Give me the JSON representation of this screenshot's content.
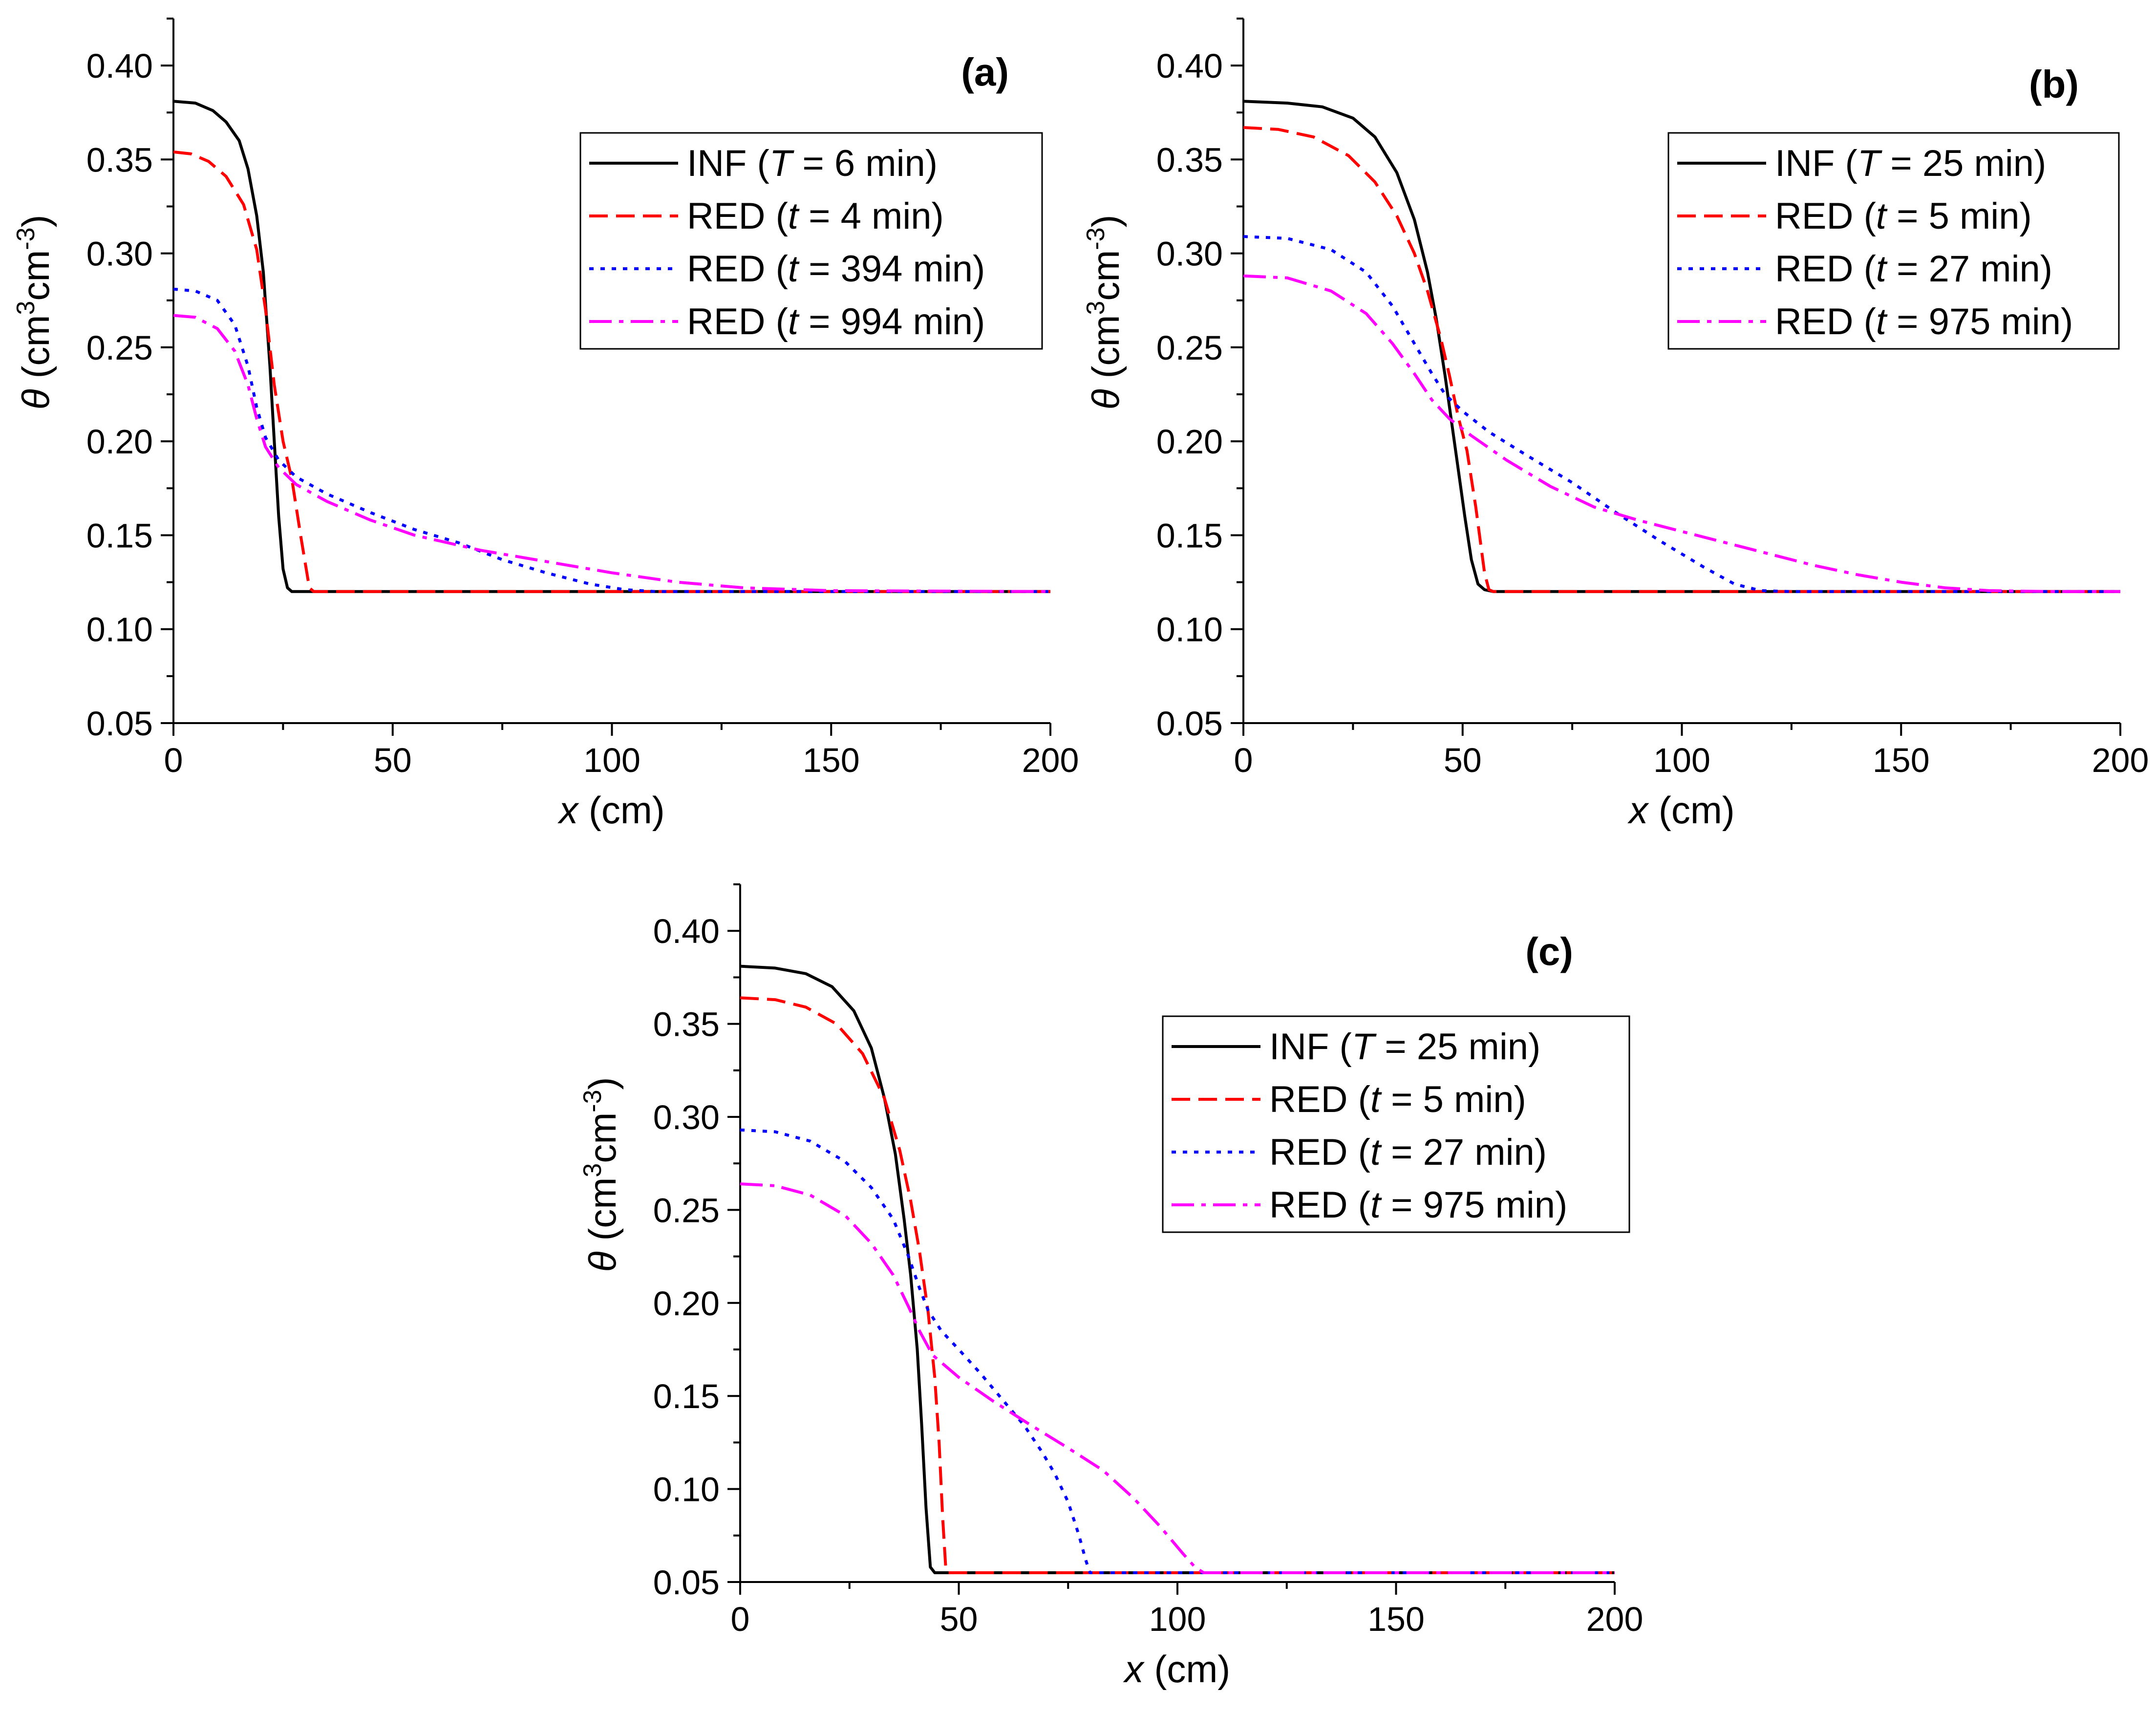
{
  "chart_data": [
    {
      "type": "line",
      "panel_label": "(a)",
      "xlabel_var": "x",
      "xlabel_unit": "(cm)",
      "ylabel_var": "θ",
      "ylabel_unit_parts": [
        " (cm",
        "3",
        "cm",
        "-3",
        ")"
      ],
      "xlim": [
        0,
        200
      ],
      "ylim": [
        0.05,
        0.425
      ],
      "xticks": [
        0,
        50,
        100,
        150,
        200
      ],
      "xtick_labels": [
        "0",
        "50",
        "100",
        "150",
        "200"
      ],
      "yticks": [
        0.05,
        0.1,
        0.15,
        0.2,
        0.25,
        0.3,
        0.35,
        0.4
      ],
      "ytick_labels": [
        "0.05",
        "0.10",
        "0.15",
        "0.20",
        "0.25",
        "0.30",
        "0.35",
        "0.40"
      ],
      "series": [
        {
          "pre": "INF (",
          "var": "T",
          "post": " = 6 min)",
          "color": "#000000",
          "dash": "solid",
          "points": [
            [
              0,
              0.381
            ],
            [
              5,
              0.38
            ],
            [
              9,
              0.376
            ],
            [
              12,
              0.37
            ],
            [
              15,
              0.36
            ],
            [
              17,
              0.345
            ],
            [
              19,
              0.32
            ],
            [
              20.5,
              0.29
            ],
            [
              22,
              0.24
            ],
            [
              23,
              0.2
            ],
            [
              24,
              0.16
            ],
            [
              25,
              0.132
            ],
            [
              26,
              0.122
            ],
            [
              27,
              0.12
            ],
            [
              200,
              0.12
            ]
          ]
        },
        {
          "pre": "RED (",
          "var": "t",
          "post": " = 4 min)",
          "color": "#ff0000",
          "dash": "dashed",
          "points": [
            [
              0,
              0.354
            ],
            [
              4,
              0.353
            ],
            [
              8,
              0.349
            ],
            [
              12,
              0.341
            ],
            [
              16,
              0.326
            ],
            [
              19,
              0.302
            ],
            [
              21,
              0.27
            ],
            [
              23,
              0.23
            ],
            [
              25,
              0.2
            ],
            [
              27,
              0.18
            ],
            [
              29,
              0.15
            ],
            [
              31,
              0.122
            ],
            [
              32,
              0.12
            ],
            [
              200,
              0.12
            ]
          ]
        },
        {
          "pre": "RED (",
          "var": "t",
          "post": " = 394 min)",
          "color": "#0000ff",
          "dash": "dotted",
          "points": [
            [
              0,
              0.281
            ],
            [
              5,
              0.28
            ],
            [
              10,
              0.275
            ],
            [
              14,
              0.262
            ],
            [
              17,
              0.24
            ],
            [
              19,
              0.218
            ],
            [
              21,
              0.202
            ],
            [
              24,
              0.19
            ],
            [
              28,
              0.181
            ],
            [
              35,
              0.172
            ],
            [
              45,
              0.162
            ],
            [
              55,
              0.153
            ],
            [
              65,
              0.146
            ],
            [
              75,
              0.137
            ],
            [
              85,
              0.13
            ],
            [
              95,
              0.124
            ],
            [
              103,
              0.121
            ],
            [
              110,
              0.12
            ],
            [
              200,
              0.12
            ]
          ]
        },
        {
          "pre": "RED (",
          "var": "t",
          "post": " = 994 min)",
          "color": "#ff00ff",
          "dash": "dashdot",
          "points": [
            [
              0,
              0.267
            ],
            [
              5,
              0.266
            ],
            [
              10,
              0.26
            ],
            [
              14,
              0.248
            ],
            [
              17,
              0.23
            ],
            [
              19,
              0.212
            ],
            [
              21,
              0.197
            ],
            [
              24,
              0.186
            ],
            [
              28,
              0.177
            ],
            [
              35,
              0.168
            ],
            [
              45,
              0.158
            ],
            [
              55,
              0.15
            ],
            [
              70,
              0.142
            ],
            [
              85,
              0.136
            ],
            [
              100,
              0.13
            ],
            [
              115,
              0.125
            ],
            [
              130,
              0.122
            ],
            [
              150,
              0.1205
            ],
            [
              200,
              0.12
            ]
          ]
        }
      ]
    },
    {
      "type": "line",
      "panel_label": "(b)",
      "xlabel_var": "x",
      "xlabel_unit": "(cm)",
      "ylabel_var": "θ",
      "ylabel_unit_parts": [
        " (cm",
        "3",
        "cm",
        "-3",
        ")"
      ],
      "xlim": [
        0,
        200
      ],
      "ylim": [
        0.05,
        0.425
      ],
      "xticks": [
        0,
        50,
        100,
        150,
        200
      ],
      "xtick_labels": [
        "0",
        "50",
        "100",
        "150",
        "200"
      ],
      "yticks": [
        0.05,
        0.1,
        0.15,
        0.2,
        0.25,
        0.3,
        0.35,
        0.4
      ],
      "ytick_labels": [
        "0.05",
        "0.10",
        "0.15",
        "0.20",
        "0.25",
        "0.30",
        "0.35",
        "0.40"
      ],
      "series": [
        {
          "pre": "INF (",
          "var": "T",
          "post": " = 25 min)",
          "color": "#000000",
          "dash": "solid",
          "points": [
            [
              0,
              0.381
            ],
            [
              10,
              0.38
            ],
            [
              18,
              0.378
            ],
            [
              25,
              0.372
            ],
            [
              30,
              0.362
            ],
            [
              35,
              0.343
            ],
            [
              39,
              0.318
            ],
            [
              42,
              0.29
            ],
            [
              44,
              0.265
            ],
            [
              46,
              0.235
            ],
            [
              47.5,
              0.21
            ],
            [
              49,
              0.185
            ],
            [
              50.5,
              0.16
            ],
            [
              52,
              0.137
            ],
            [
              53.5,
              0.124
            ],
            [
              55,
              0.121
            ],
            [
              57,
              0.12
            ],
            [
              200,
              0.12
            ]
          ]
        },
        {
          "pre": "RED (",
          "var": "t",
          "post": " = 5 min)",
          "color": "#ff0000",
          "dash": "dashed",
          "points": [
            [
              0,
              0.367
            ],
            [
              8,
              0.366
            ],
            [
              16,
              0.362
            ],
            [
              24,
              0.352
            ],
            [
              30,
              0.338
            ],
            [
              35,
              0.32
            ],
            [
              39,
              0.3
            ],
            [
              42,
              0.28
            ],
            [
              45,
              0.255
            ],
            [
              47,
              0.235
            ],
            [
              49,
              0.213
            ],
            [
              51,
              0.195
            ],
            [
              53,
              0.165
            ],
            [
              55,
              0.13
            ],
            [
              56,
              0.121
            ],
            [
              57,
              0.12
            ],
            [
              200,
              0.12
            ]
          ]
        },
        {
          "pre": "RED (",
          "var": "t",
          "post": " = 27 min)",
          "color": "#0000ff",
          "dash": "dotted",
          "points": [
            [
              0,
              0.309
            ],
            [
              10,
              0.308
            ],
            [
              20,
              0.302
            ],
            [
              28,
              0.29
            ],
            [
              34,
              0.272
            ],
            [
              39,
              0.252
            ],
            [
              43,
              0.236
            ],
            [
              46,
              0.225
            ],
            [
              50,
              0.216
            ],
            [
              56,
              0.205
            ],
            [
              65,
              0.192
            ],
            [
              75,
              0.178
            ],
            [
              85,
              0.162
            ],
            [
              95,
              0.147
            ],
            [
              105,
              0.133
            ],
            [
              112,
              0.124
            ],
            [
              118,
              0.1205
            ],
            [
              125,
              0.12
            ],
            [
              200,
              0.12
            ]
          ]
        },
        {
          "pre": "RED (",
          "var": "t",
          "post": " = 975 min)",
          "color": "#ff00ff",
          "dash": "dashdot",
          "points": [
            [
              0,
              0.288
            ],
            [
              10,
              0.287
            ],
            [
              20,
              0.28
            ],
            [
              28,
              0.268
            ],
            [
              34,
              0.252
            ],
            [
              39,
              0.236
            ],
            [
              43,
              0.222
            ],
            [
              47,
              0.212
            ],
            [
              52,
              0.203
            ],
            [
              60,
              0.19
            ],
            [
              70,
              0.176
            ],
            [
              80,
              0.165
            ],
            [
              90,
              0.158
            ],
            [
              100,
              0.152
            ],
            [
              110,
              0.146
            ],
            [
              120,
              0.14
            ],
            [
              130,
              0.134
            ],
            [
              140,
              0.129
            ],
            [
              150,
              0.125
            ],
            [
              160,
              0.122
            ],
            [
              170,
              0.1205
            ],
            [
              185,
              0.12
            ],
            [
              200,
              0.12
            ]
          ]
        }
      ]
    },
    {
      "type": "line",
      "panel_label": "(c)",
      "xlabel_var": "x",
      "xlabel_unit": "(cm)",
      "ylabel_var": "θ",
      "ylabel_unit_parts": [
        " (cm",
        "3",
        "cm",
        "-3",
        ")"
      ],
      "xlim": [
        0,
        200
      ],
      "ylim": [
        0.05,
        0.425
      ],
      "xticks": [
        0,
        50,
        100,
        150,
        200
      ],
      "xtick_labels": [
        "0",
        "50",
        "100",
        "150",
        "200"
      ],
      "yticks": [
        0.05,
        0.1,
        0.15,
        0.2,
        0.25,
        0.3,
        0.35,
        0.4
      ],
      "ytick_labels": [
        "0.05",
        "0.10",
        "0.15",
        "0.20",
        "0.25",
        "0.30",
        "0.35",
        "0.40"
      ],
      "series": [
        {
          "pre": "INF (",
          "var": "T",
          "post": " = 25 min)",
          "color": "#000000",
          "dash": "solid",
          "points": [
            [
              0,
              0.381
            ],
            [
              8,
              0.38
            ],
            [
              15,
              0.377
            ],
            [
              21,
              0.37
            ],
            [
              26,
              0.357
            ],
            [
              30,
              0.337
            ],
            [
              33,
              0.31
            ],
            [
              35.5,
              0.28
            ],
            [
              37.5,
              0.245
            ],
            [
              39,
              0.215
            ],
            [
              40.5,
              0.175
            ],
            [
              41.5,
              0.135
            ],
            [
              42.5,
              0.09
            ],
            [
              43.5,
              0.058
            ],
            [
              44.5,
              0.055
            ],
            [
              200,
              0.055
            ]
          ]
        },
        {
          "pre": "RED (",
          "var": "t",
          "post": " = 5 min)",
          "color": "#ff0000",
          "dash": "dashed",
          "points": [
            [
              0,
              0.364
            ],
            [
              8,
              0.363
            ],
            [
              15,
              0.359
            ],
            [
              22,
              0.35
            ],
            [
              28,
              0.334
            ],
            [
              33,
              0.31
            ],
            [
              36.5,
              0.282
            ],
            [
              39,
              0.255
            ],
            [
              41,
              0.228
            ],
            [
              43,
              0.195
            ],
            [
              44.5,
              0.16
            ],
            [
              45.5,
              0.125
            ],
            [
              46.3,
              0.085
            ],
            [
              47,
              0.058
            ],
            [
              47.5,
              0.055
            ],
            [
              200,
              0.055
            ]
          ]
        },
        {
          "pre": "RED (",
          "var": "t",
          "post": " = 27 min)",
          "color": "#0000ff",
          "dash": "dotted",
          "points": [
            [
              0,
              0.293
            ],
            [
              8,
              0.292
            ],
            [
              16,
              0.287
            ],
            [
              24,
              0.276
            ],
            [
              30,
              0.262
            ],
            [
              35,
              0.245
            ],
            [
              38.5,
              0.225
            ],
            [
              41,
              0.208
            ],
            [
              43,
              0.196
            ],
            [
              46,
              0.185
            ],
            [
              50,
              0.175
            ],
            [
              55,
              0.162
            ],
            [
              60,
              0.148
            ],
            [
              65,
              0.134
            ],
            [
              69,
              0.12
            ],
            [
              72,
              0.108
            ],
            [
              75,
              0.093
            ],
            [
              77.5,
              0.075
            ],
            [
              79,
              0.062
            ],
            [
              80,
              0.055
            ],
            [
              200,
              0.055
            ]
          ]
        },
        {
          "pre": "RED (",
          "var": "t",
          "post": " = 975 min)",
          "color": "#ff00ff",
          "dash": "dashdot",
          "points": [
            [
              0,
              0.264
            ],
            [
              8,
              0.263
            ],
            [
              16,
              0.258
            ],
            [
              24,
              0.247
            ],
            [
              30,
              0.232
            ],
            [
              35,
              0.215
            ],
            [
              38.5,
              0.198
            ],
            [
              41,
              0.185
            ],
            [
              44,
              0.172
            ],
            [
              50,
              0.16
            ],
            [
              58,
              0.147
            ],
            [
              66,
              0.135
            ],
            [
              75,
              0.122
            ],
            [
              83,
              0.11
            ],
            [
              90,
              0.095
            ],
            [
              96,
              0.08
            ],
            [
              101,
              0.066
            ],
            [
              104,
              0.058
            ],
            [
              106,
              0.055
            ],
            [
              200,
              0.055
            ]
          ]
        }
      ]
    }
  ]
}
